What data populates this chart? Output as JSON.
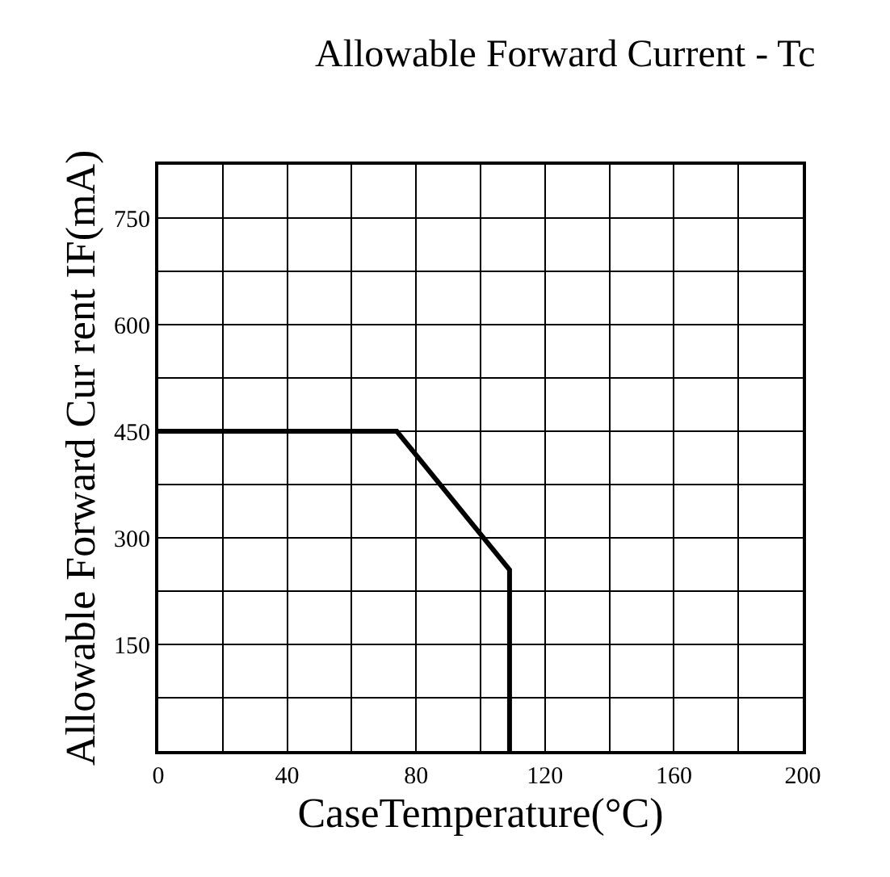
{
  "chart_data": {
    "type": "line",
    "title": "Allowable Forward Current - Tc",
    "xlabel": "CaseTemperature(°C)",
    "ylabel": "Allowable Forward Cur rent IF(mA)",
    "x": [
      0,
      74,
      109,
      109
    ],
    "series": [
      {
        "color": "#000000",
        "values": [
          450,
          450,
          255,
          0
        ]
      }
    ],
    "xlim": [
      0,
      200
    ],
    "xticks": [
      0,
      {
        "value": 20,
        "label": null
      },
      40,
      {
        "value": 60,
        "label": null
      },
      80,
      {
        "value": 100,
        "label": null
      },
      120,
      {
        "value": 140,
        "label": null
      },
      160,
      {
        "value": 180,
        "label": null
      },
      200
    ],
    "ylim": [
      0,
      825
    ],
    "yticks": [
      {
        "value": 0,
        "label": null
      },
      {
        "value": 75,
        "label": null
      },
      150,
      {
        "value": 225,
        "label": null
      },
      300,
      {
        "value": 375,
        "label": null
      },
      450,
      {
        "value": 525,
        "label": null
      },
      600,
      {
        "value": 675,
        "label": null
      },
      750,
      {
        "value": 825,
        "label": null
      }
    ],
    "grid": true,
    "marker": "none",
    "line_style": "solid"
  }
}
